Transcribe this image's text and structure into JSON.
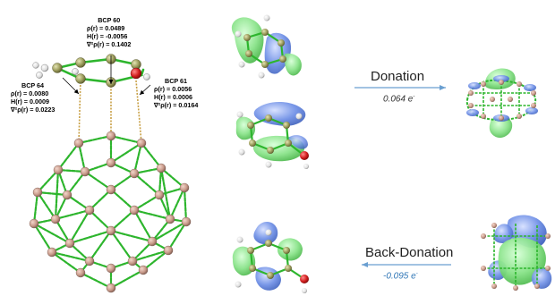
{
  "bcp_labels": [
    {
      "id": "bcp60",
      "title": "BCP 60",
      "lines": [
        "ρ(r) = 0.0489",
        "H(r) = -0.0056",
        "∇²ρ(r) = 0.1402"
      ]
    },
    {
      "id": "bcp64",
      "title": "BCP 64",
      "lines": [
        "ρ(r) = 0.0080",
        "H(r) = 0.0009",
        "∇²ρ(r) = 0.0223"
      ]
    },
    {
      "id": "bcp61",
      "title": "BCP 61",
      "lines": [
        "ρ(r) = 0.0056",
        "H(r) = 0.0006",
        "∇²ρ(r) = 0.0164"
      ]
    }
  ],
  "flows": {
    "donation": {
      "label": "Donation",
      "value": "0.064 e",
      "value_sup": "-",
      "value_color": "#333333",
      "arrow_color": "#6a9fd1"
    },
    "back_donation": {
      "label": "Back-Donation",
      "value": "-0.095 e",
      "value_sup": "-",
      "value_color": "#2e75b6",
      "arrow_color": "#6a9fd1"
    }
  },
  "colors": {
    "bond_green": "#2db52d",
    "bond_dark": "#1a6e1a",
    "boron_atom": "#c89a8a",
    "carbon_atom": "#9a9a5a",
    "hydrogen_atom": "#e6e6e6",
    "oxygen_atom": "#d21e1e",
    "orbital_blue": "#6e8fe6",
    "orbital_green": "#86e286",
    "bond_path_gold": "#c8a046"
  }
}
